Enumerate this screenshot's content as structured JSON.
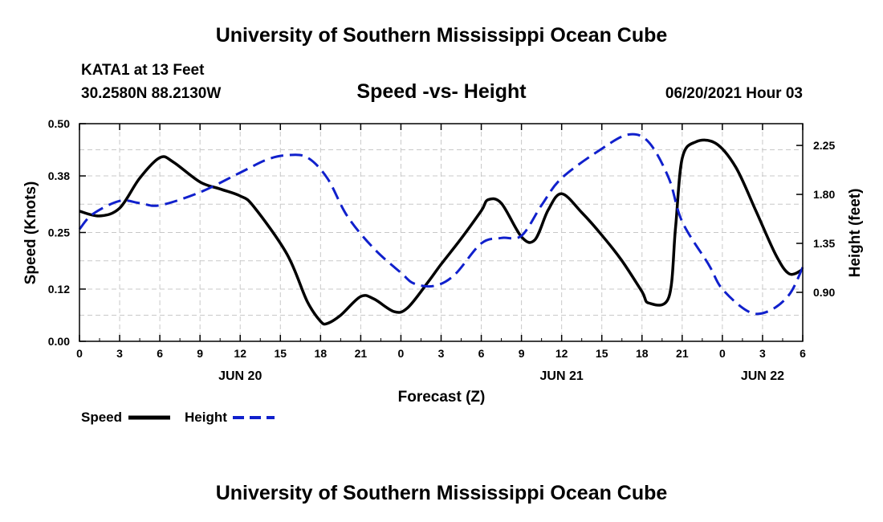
{
  "header": {
    "title": "University of Southern Mississippi Ocean Cube",
    "station": "KATA1 at 13 Feet",
    "coords": "30.2580N  88.2130W",
    "datetime": "06/20/2021 Hour 03"
  },
  "footer": {
    "title": "University of Southern Mississippi Ocean Cube"
  },
  "chart_data": {
    "type": "line",
    "title": "Speed -vs- Height",
    "xlabel": "Forecast (Z)",
    "ylabel_left": "Speed (Knots)",
    "ylabel_right": "Height (feet)",
    "xlim": [
      0,
      54
    ],
    "ylim_left": [
      0,
      0.5
    ],
    "ylim_right": [
      0.45,
      2.45
    ],
    "grid": true,
    "x_ticks": [
      0,
      3,
      6,
      9,
      12,
      15,
      18,
      21,
      24,
      27,
      30,
      33,
      36,
      39,
      42,
      45,
      48,
      51,
      54
    ],
    "x_tick_labels": [
      "0",
      "3",
      "6",
      "9",
      "12",
      "15",
      "18",
      "21",
      "0",
      "3",
      "6",
      "9",
      "12",
      "15",
      "18",
      "21",
      "0",
      "3",
      "6"
    ],
    "date_labels": [
      {
        "x": 12,
        "label": "JUN 20"
      },
      {
        "x": 36,
        "label": "JUN 21"
      },
      {
        "x": 51,
        "label": "JUN 22"
      }
    ],
    "y_left_ticks": [
      0.0,
      0.12,
      0.25,
      0.38,
      0.5
    ],
    "y_left_tick_labels": [
      "0.00",
      "0.12",
      "0.25",
      "0.38",
      "0.50"
    ],
    "y_right_ticks": [
      0.9,
      1.35,
      1.8,
      2.25
    ],
    "y_right_tick_labels": [
      "0.90",
      "1.35",
      "1.80",
      "2.25"
    ],
    "series": [
      {
        "name": "Speed",
        "axis": "left",
        "color": "#000000",
        "style": "solid",
        "x": [
          0,
          1.5,
          3,
          4.5,
          6,
          7,
          9,
          10.5,
          12,
          13,
          15.5,
          17,
          18,
          18.5,
          19.5,
          21,
          22,
          23.5,
          24.5,
          26,
          27,
          28.5,
          30,
          30.5,
          31.5,
          33,
          34,
          35,
          36,
          37.5,
          39,
          40.5,
          42,
          42.5,
          44,
          44.5,
          45,
          46,
          47.5,
          49,
          50.5,
          52,
          53,
          54
        ],
        "values": [
          0.299,
          0.288,
          0.306,
          0.375,
          0.422,
          0.412,
          0.366,
          0.35,
          0.334,
          0.31,
          0.2,
          0.092,
          0.046,
          0.041,
          0.06,
          0.103,
          0.097,
          0.068,
          0.077,
          0.135,
          0.177,
          0.236,
          0.3,
          0.325,
          0.317,
          0.24,
          0.233,
          0.302,
          0.339,
          0.296,
          0.244,
          0.185,
          0.114,
          0.088,
          0.101,
          0.26,
          0.42,
          0.458,
          0.455,
          0.4,
          0.3,
          0.198,
          0.155,
          0.165
        ]
      },
      {
        "name": "Height",
        "axis": "right",
        "color": "#1020cc",
        "style": "dashed",
        "x": [
          0,
          1,
          3,
          4.5,
          6,
          9,
          12,
          14,
          15.5,
          17,
          18.5,
          20,
          22,
          24,
          25,
          26.5,
          28,
          30,
          31.5,
          33,
          34.5,
          36,
          39,
          41,
          42.5,
          44,
          45,
          47,
          48,
          50,
          51.5,
          53,
          54
        ],
        "values": [
          1.48,
          1.62,
          1.74,
          1.72,
          1.7,
          1.82,
          2.0,
          2.12,
          2.16,
          2.14,
          1.95,
          1.6,
          1.3,
          1.08,
          0.98,
          0.96,
          1.06,
          1.35,
          1.4,
          1.42,
          1.7,
          1.95,
          2.22,
          2.35,
          2.28,
          1.95,
          1.55,
          1.15,
          0.93,
          0.72,
          0.73,
          0.88,
          1.13
        ]
      }
    ],
    "legend": [
      {
        "label": "Speed",
        "color": "#000000",
        "style": "solid"
      },
      {
        "label": "Height",
        "color": "#1020cc",
        "style": "dashed"
      }
    ]
  }
}
